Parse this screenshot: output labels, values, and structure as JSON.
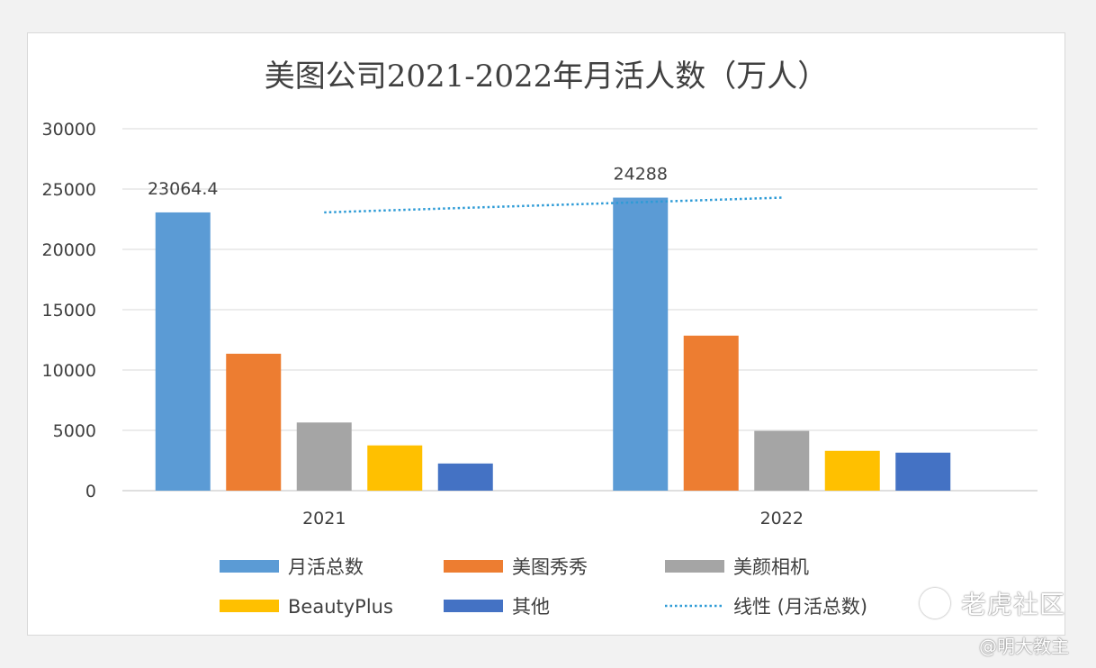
{
  "chart_data": {
    "type": "bar",
    "title": "美图公司2021-2022年月活人数（万人）",
    "categories": [
      "2021",
      "2022"
    ],
    "ylim": [
      0,
      30000
    ],
    "yticks": [
      0,
      5000,
      10000,
      15000,
      20000,
      25000,
      30000
    ],
    "grid": true,
    "legend_placement": "bottom",
    "series": [
      {
        "name": "月活总数",
        "values": [
          23064.4,
          24288
        ],
        "color": "#5b9bd5",
        "data_labels": [
          "23064.4",
          "24288"
        ]
      },
      {
        "name": "美图秀秀",
        "values": [
          11350,
          12850
        ],
        "color": "#ed7d31"
      },
      {
        "name": "美颜相机",
        "values": [
          5650,
          4950
        ],
        "color": "#a5a5a5"
      },
      {
        "name": "BeautyPlus",
        "values": [
          3750,
          3300
        ],
        "color": "#ffc000"
      },
      {
        "name": "其他",
        "values": [
          2250,
          3150
        ],
        "color": "#4472c4"
      }
    ],
    "trendline": {
      "name": "线性 (月活总数)",
      "series": "月活总数",
      "type": "linear",
      "color": "#2e9bd6"
    }
  },
  "watermark": {
    "site": "老虎社区",
    "author": "@明大教主",
    "icon": "tiger-community-logo-icon"
  }
}
